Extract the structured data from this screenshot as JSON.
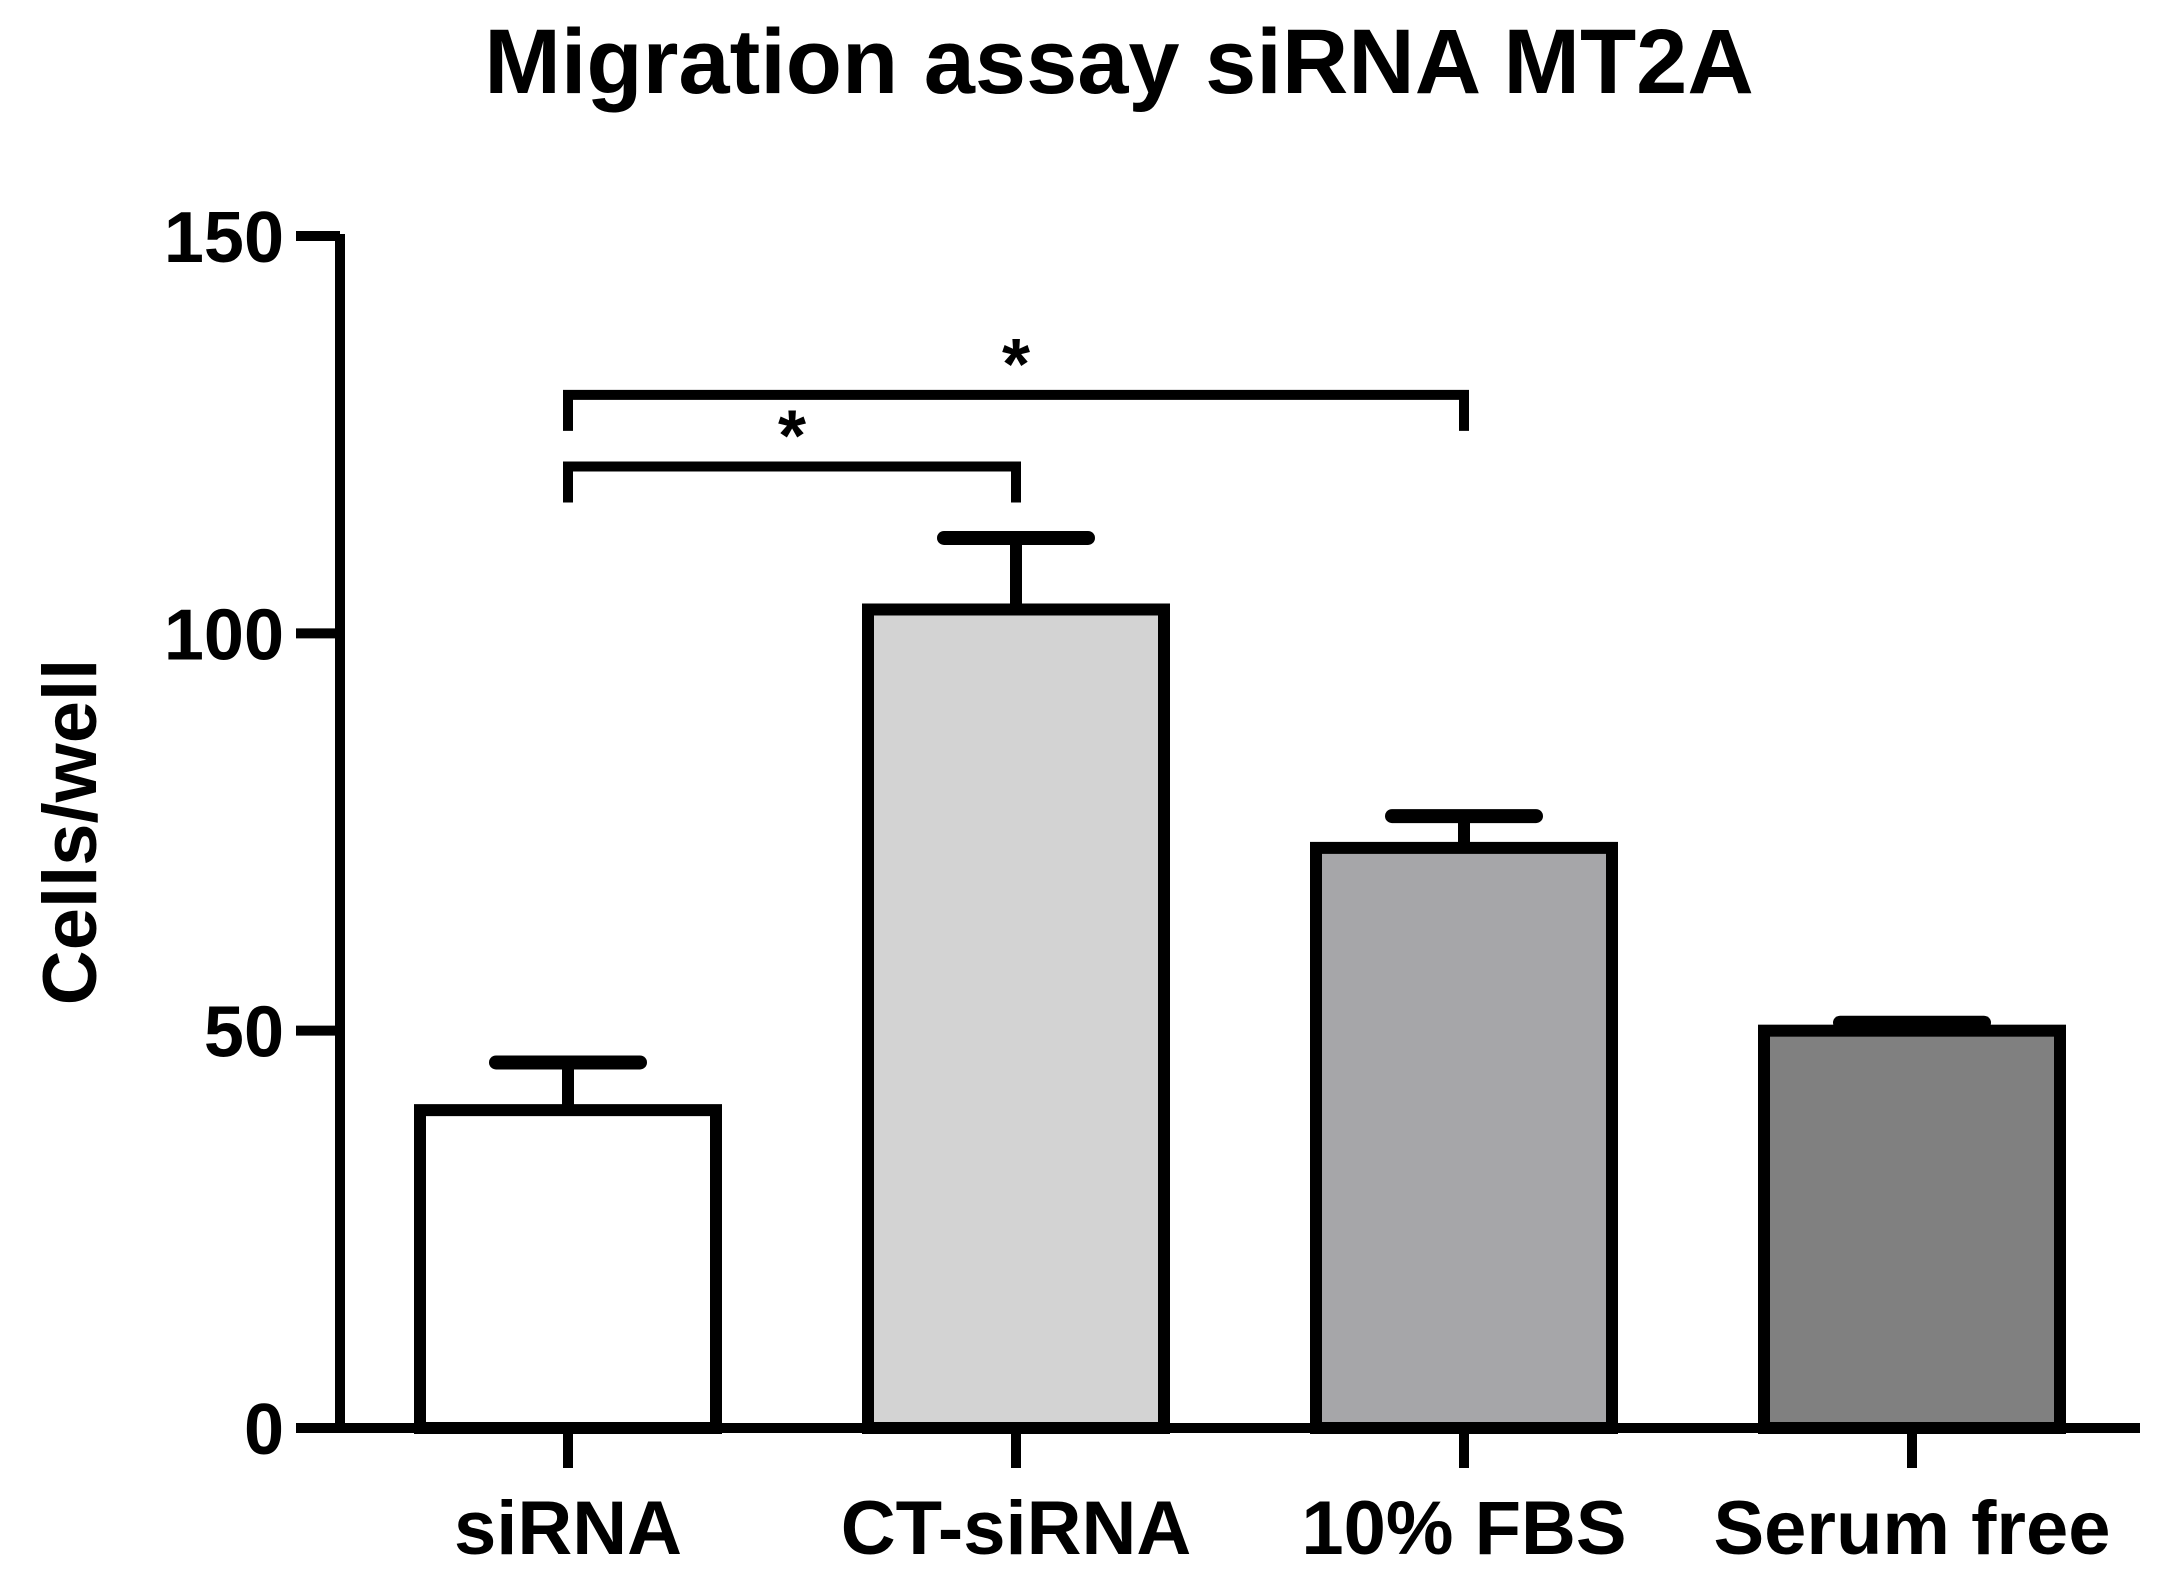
{
  "chart_data": {
    "type": "bar",
    "title": "Migration assay siRNA MT2A",
    "xlabel": "",
    "ylabel": "Cells/well",
    "ylim": [
      0,
      150
    ],
    "yticks": [
      "0",
      "50",
      "100",
      "150"
    ],
    "categories": [
      "siRNA",
      "CT-siRNA",
      "10% FBS",
      "Serum free"
    ],
    "values": [
      40,
      103,
      73,
      50
    ],
    "error_upper": [
      46,
      112,
      77,
      51
    ],
    "bar_colors": [
      "#ffffff",
      "#d3d3d3",
      "#a6a6a9",
      "#808080"
    ],
    "grid": false,
    "significance": [
      {
        "from": 0,
        "to": 1,
        "label": "*",
        "bracket_y": 121
      },
      {
        "from": 0,
        "to": 2,
        "label": "*",
        "bracket_y": 130
      }
    ]
  }
}
